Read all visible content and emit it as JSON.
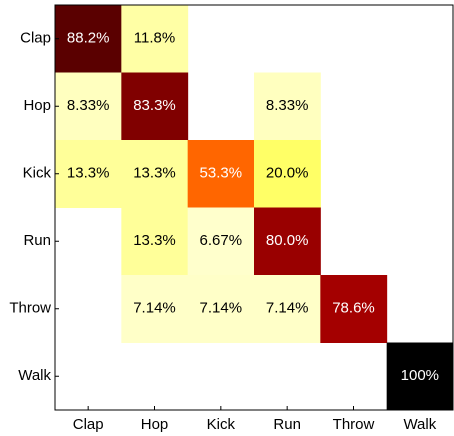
{
  "chart_data": {
    "type": "heatmap",
    "x_categories": [
      "Clap",
      "Hop",
      "Kick",
      "Run",
      "Throw",
      "Walk"
    ],
    "y_categories": [
      "Clap",
      "Hop",
      "Kick",
      "Run",
      "Throw",
      "Walk"
    ],
    "values": [
      [
        88.2,
        11.8,
        null,
        null,
        null,
        null
      ],
      [
        8.33,
        83.3,
        null,
        8.33,
        null,
        null
      ],
      [
        13.3,
        13.3,
        53.3,
        20.0,
        null,
        null
      ],
      [
        null,
        13.3,
        6.67,
        80.0,
        null,
        null
      ],
      [
        null,
        7.14,
        7.14,
        7.14,
        78.6,
        null
      ],
      [
        null,
        null,
        null,
        null,
        null,
        100
      ]
    ],
    "value_labels": [
      [
        "88.2%",
        "11.8%",
        null,
        null,
        null,
        null
      ],
      [
        "8.33%",
        "83.3%",
        null,
        "8.33%",
        null,
        null
      ],
      [
        "13.3%",
        "13.3%",
        "53.3%",
        "20.0%",
        null,
        null
      ],
      [
        null,
        "13.3%",
        "6.67%",
        "80.0%",
        null,
        null
      ],
      [
        null,
        "7.14%",
        "7.14%",
        "7.14%",
        "78.6%",
        null
      ],
      [
        null,
        null,
        null,
        null,
        null,
        "100%"
      ]
    ],
    "clim": [
      0,
      100
    ],
    "colorscale": [
      "#ffffff",
      "#ffff00",
      "#ff0000",
      "#000000"
    ]
  }
}
